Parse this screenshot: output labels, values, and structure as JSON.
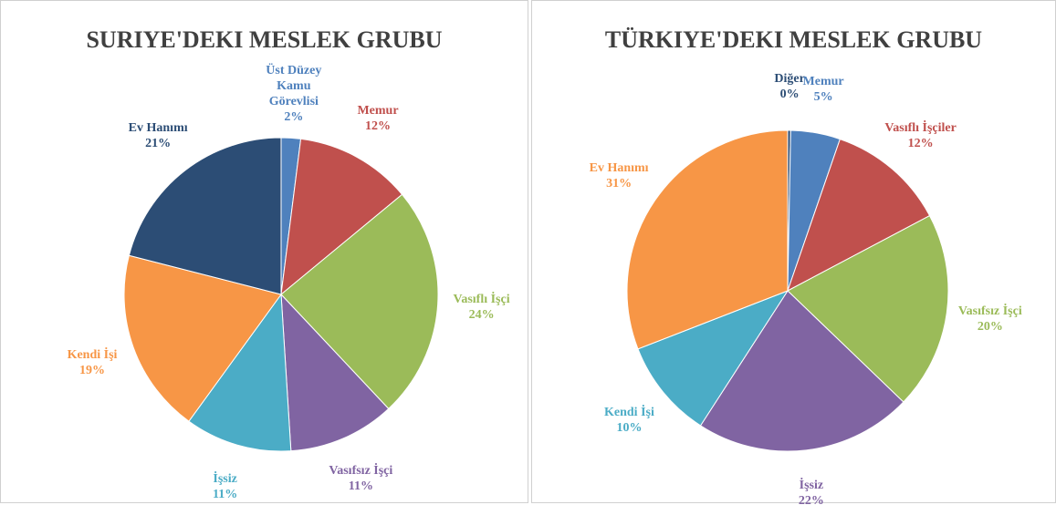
{
  "chart_data": [
    {
      "type": "pie",
      "title": "SURIYE'DEKI MESLEK GRUBU",
      "categories": [
        "Üst Düzey Kamu Görevlisi",
        "Memur",
        "Vasıflı İşçi",
        "Vasıfsız İşçi",
        "İşsiz",
        "Kendi İşi",
        "Ev Hanımı"
      ],
      "values": [
        2,
        12,
        24,
        11,
        11,
        19,
        21
      ],
      "value_labels": [
        "2%",
        "12%",
        "24%",
        "11%",
        "11%",
        "19%",
        "21%"
      ],
      "colors": [
        "#4f81bd",
        "#c0504d",
        "#9bbb59",
        "#8064a2",
        "#4bacc6",
        "#f79646",
        "#2c4d75"
      ]
    },
    {
      "type": "pie",
      "title": "TÜRKIYE'DEKI MESLEK GRUBU",
      "categories": [
        "Diğer",
        "Memur",
        "Vasıflı İşçiler",
        "Vasıfsız İşçi",
        "İşsiz",
        "Kendi İşi",
        "Ev Hanımı"
      ],
      "values": [
        0.3,
        5,
        12,
        20,
        22,
        10,
        31
      ],
      "value_labels": [
        "0%",
        "5%",
        "12%",
        "20%",
        "22%",
        "10%",
        "31%"
      ],
      "colors": [
        "#2c4d75",
        "#4f81bd",
        "#c0504d",
        "#9bbb59",
        "#8064a2",
        "#4bacc6",
        "#f79646"
      ]
    }
  ]
}
